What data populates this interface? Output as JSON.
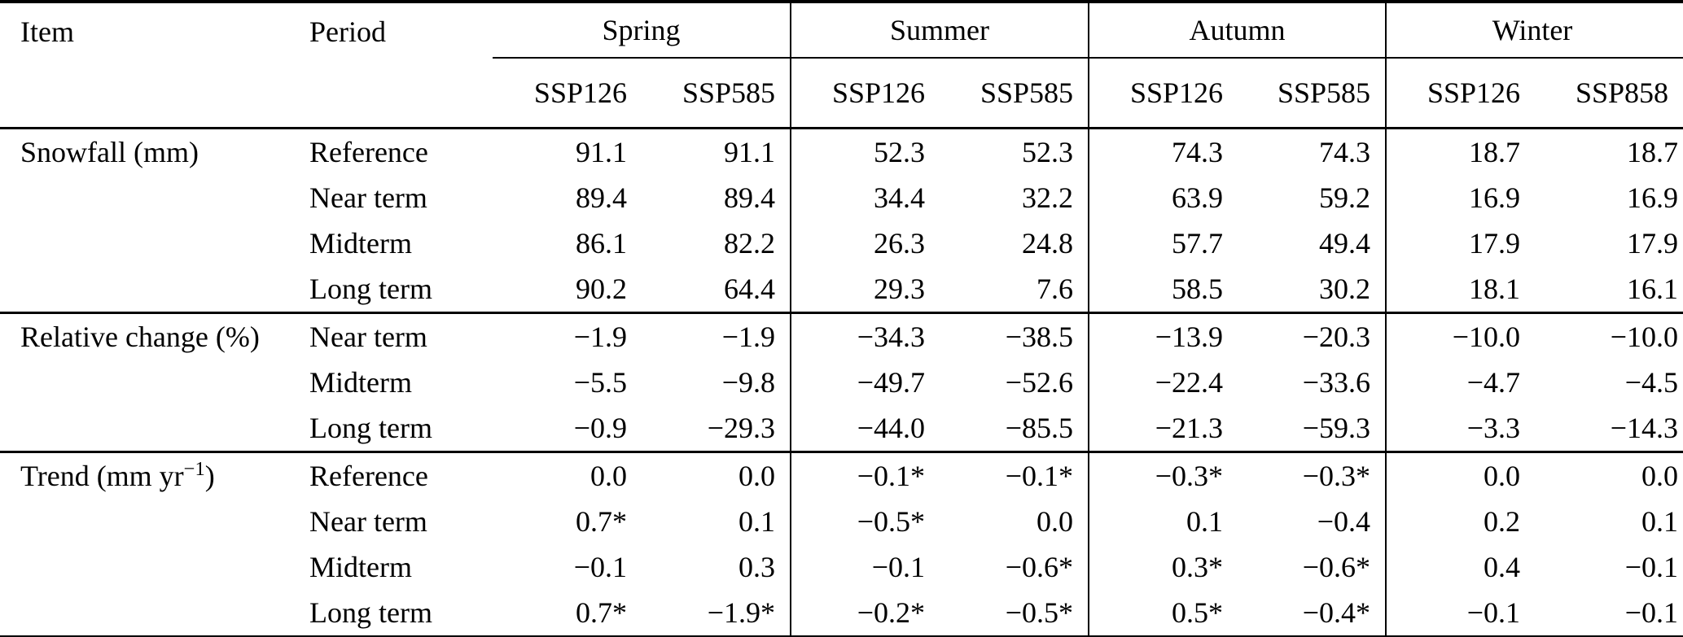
{
  "table": {
    "columns": {
      "item_label": "Item",
      "period_label": "Period",
      "season_groups": [
        {
          "label": "Spring",
          "sub": [
            "SSP126",
            "SSP585"
          ]
        },
        {
          "label": "Summer",
          "sub": [
            "SSP126",
            "SSP585"
          ]
        },
        {
          "label": "Autumn",
          "sub": [
            "SSP126",
            "SSP585"
          ]
        },
        {
          "label": "Winter",
          "sub": [
            "SSP126",
            "SSP858"
          ]
        }
      ]
    },
    "sections": [
      {
        "id": "snowfall",
        "item_parts": [
          {
            "text": "Snowfall (mm)",
            "sup": false
          }
        ],
        "rows": [
          {
            "period": "Reference",
            "values": [
              "91.1",
              "91.1",
              "52.3",
              "52.3",
              "74.3",
              "74.3",
              "18.7",
              "18.7"
            ]
          },
          {
            "period": "Near term",
            "values": [
              "89.4",
              "89.4",
              "34.4",
              "32.2",
              "63.9",
              "59.2",
              "16.9",
              "16.9"
            ]
          },
          {
            "period": "Midterm",
            "values": [
              "86.1",
              "82.2",
              "26.3",
              "24.8",
              "57.7",
              "49.4",
              "17.9",
              "17.9"
            ]
          },
          {
            "period": "Long term",
            "values": [
              "90.2",
              "64.4",
              "29.3",
              "7.6",
              "58.5",
              "30.2",
              "18.1",
              "16.1"
            ]
          }
        ]
      },
      {
        "id": "relative-change",
        "item_parts": [
          {
            "text": "Relative change (%)",
            "sup": false
          }
        ],
        "rows": [
          {
            "period": "Near term",
            "values": [
              "−1.9",
              "−1.9",
              "−34.3",
              "−38.5",
              "−13.9",
              "−20.3",
              "−10.0",
              "−10.0"
            ]
          },
          {
            "period": "Midterm",
            "values": [
              "−5.5",
              "−9.8",
              "−49.7",
              "−52.6",
              "−22.4",
              "−33.6",
              "−4.7",
              "−4.5"
            ]
          },
          {
            "period": "Long term",
            "values": [
              "−0.9",
              "−29.3",
              "−44.0",
              "−85.5",
              "−21.3",
              "−59.3",
              "−3.3",
              "−14.3"
            ]
          }
        ]
      },
      {
        "id": "trend",
        "item_parts": [
          {
            "text": "Trend (mm yr",
            "sup": false
          },
          {
            "text": "−1",
            "sup": true
          },
          {
            "text": ")",
            "sup": false
          }
        ],
        "rows": [
          {
            "period": "Reference",
            "values": [
              "0.0",
              "0.0",
              "−0.1*",
              "−0.1*",
              "−0.3*",
              "−0.3*",
              "0.0",
              "0.0"
            ]
          },
          {
            "period": "Near term",
            "values": [
              "0.7*",
              "0.1",
              "−0.5*",
              "0.0",
              "0.1",
              "−0.4",
              "0.2",
              "0.1"
            ]
          },
          {
            "period": "Midterm",
            "values": [
              "−0.1",
              "0.3",
              "−0.1",
              "−0.6*",
              "0.3*",
              "−0.6*",
              "0.4",
              "−0.1"
            ]
          },
          {
            "period": "Long term",
            "values": [
              "0.7*",
              "−1.9*",
              "−0.2*",
              "−0.5*",
              "0.5*",
              "−0.4*",
              "−0.1",
              "−0.1"
            ]
          }
        ]
      }
    ]
  }
}
